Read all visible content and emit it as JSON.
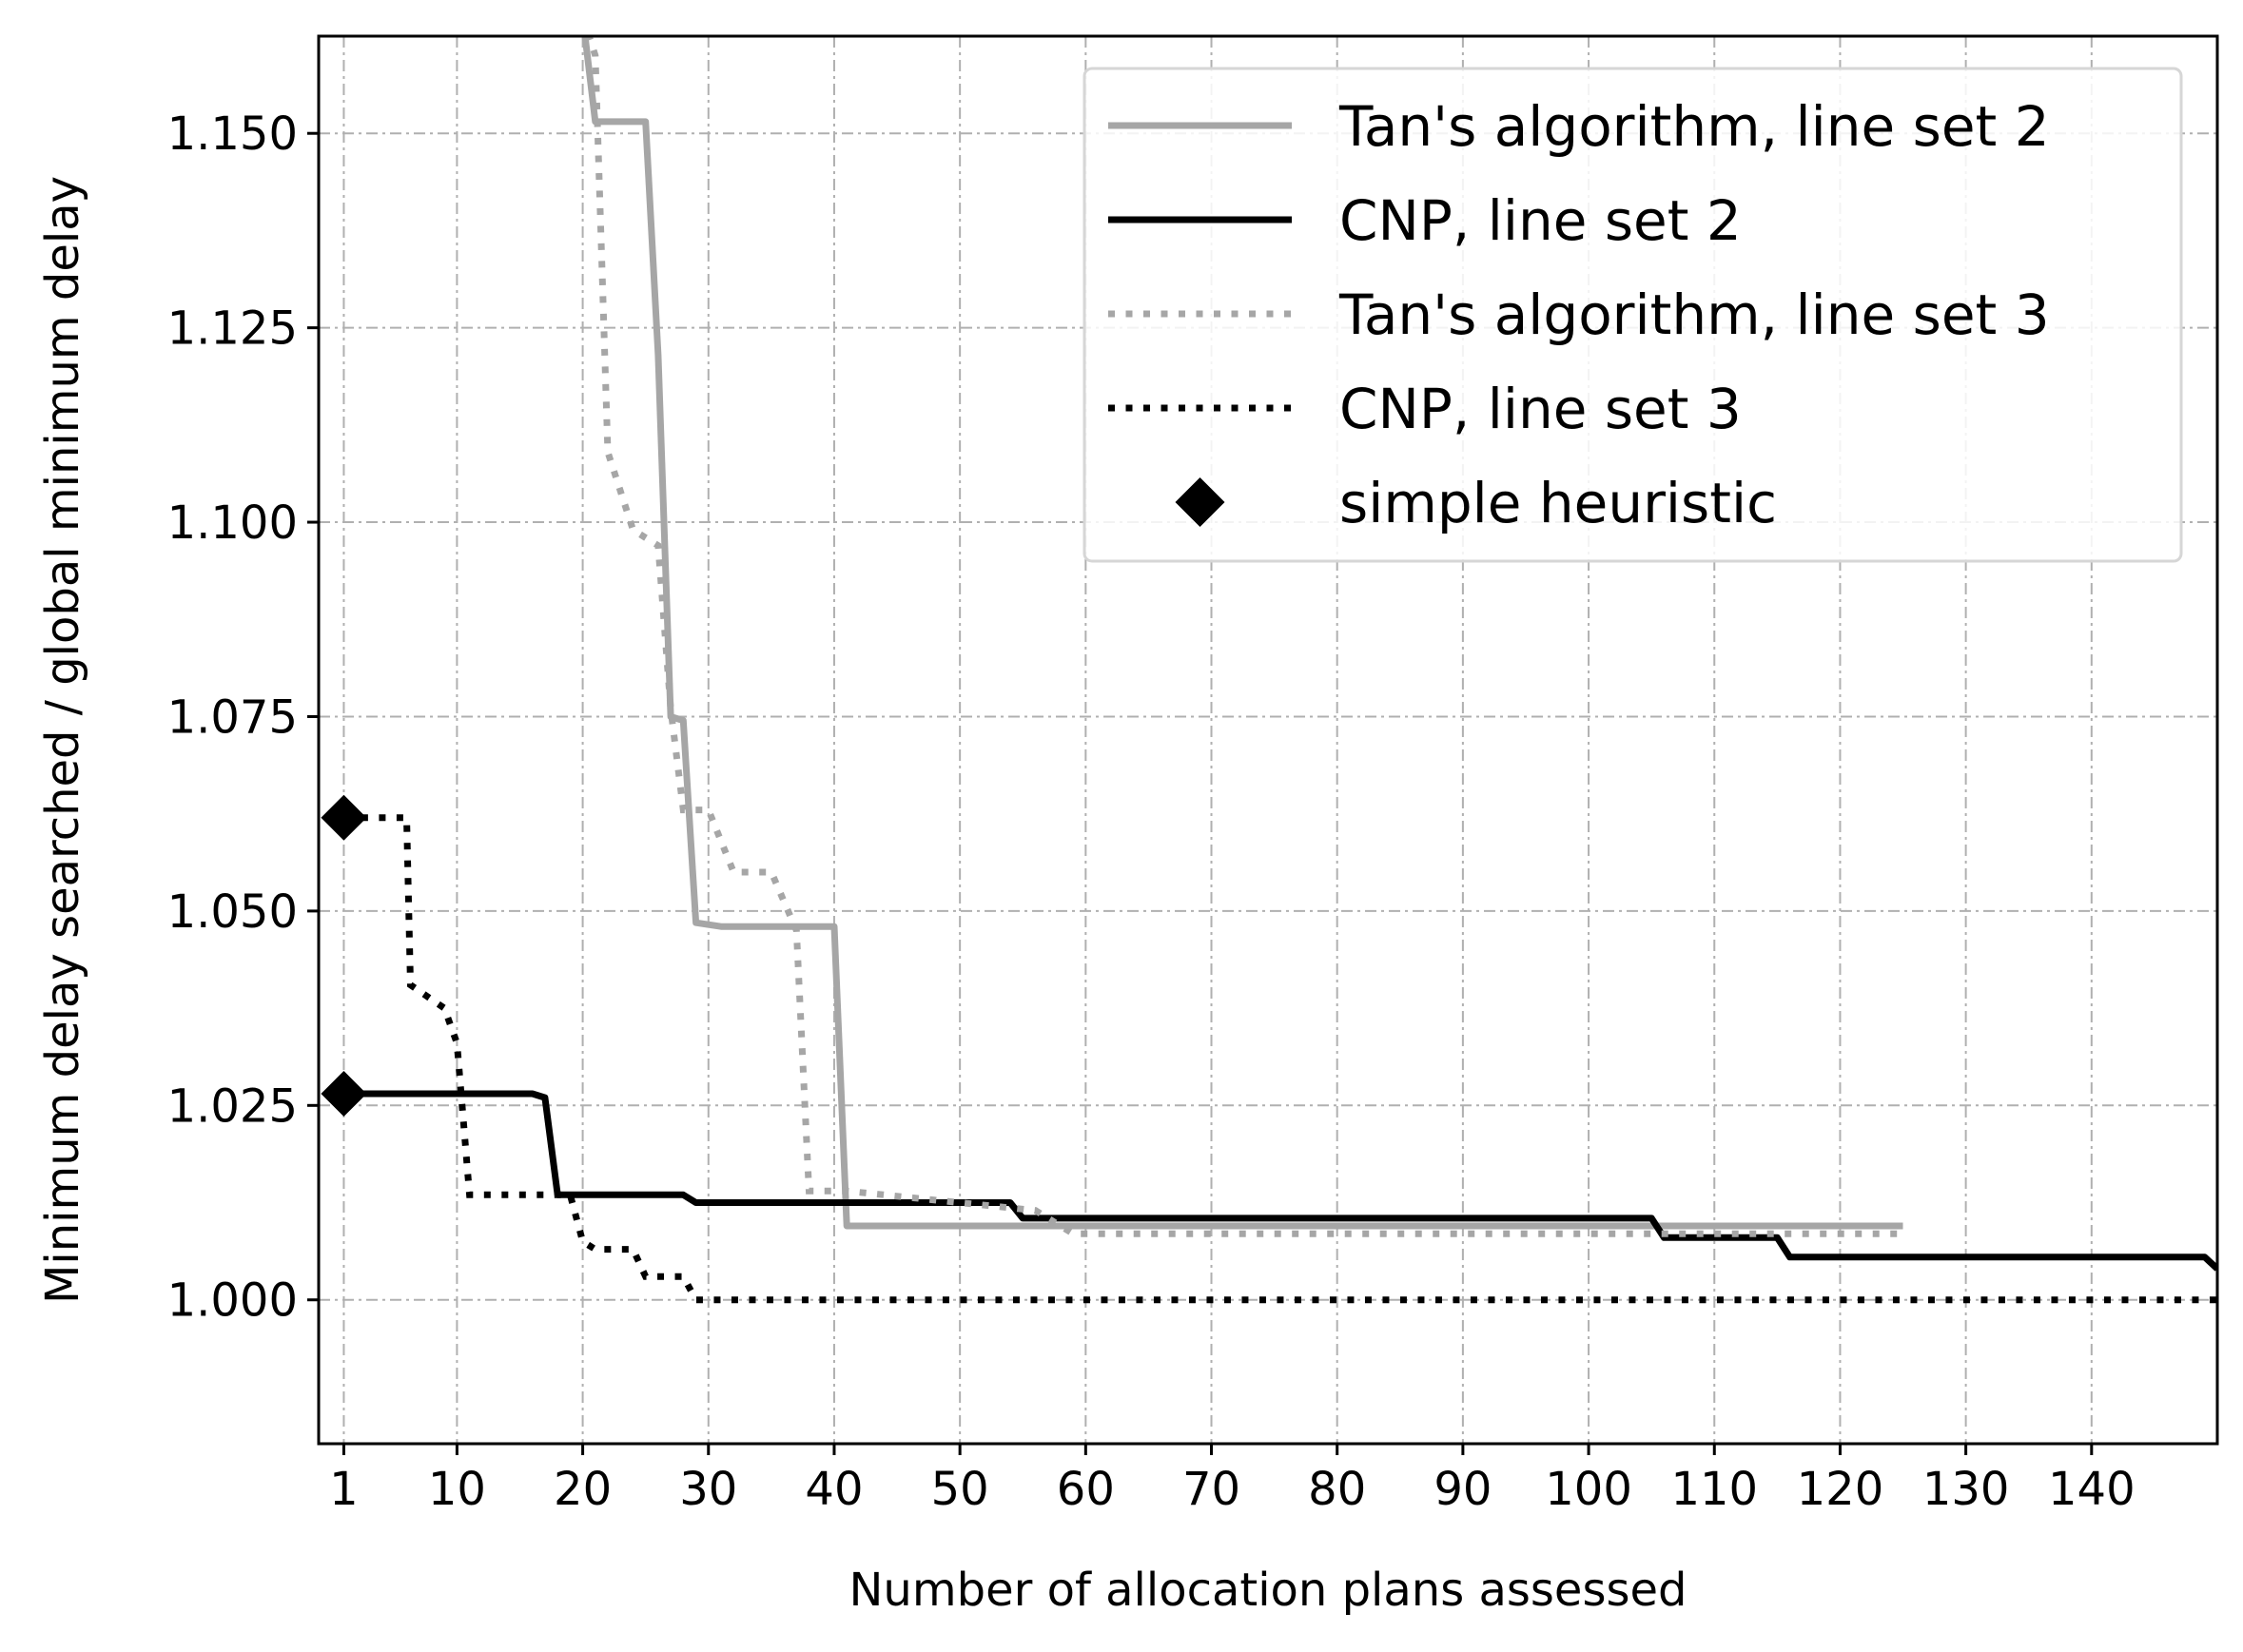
{
  "chart_data": {
    "type": "line",
    "xlabel": "Number of allocation plans assessed",
    "ylabel": "Minimum delay searched / global minimum delay",
    "xlim": [
      -1,
      150
    ],
    "ylim": [
      0.9815,
      1.1625
    ],
    "xticks": [
      1,
      10,
      20,
      30,
      40,
      50,
      60,
      70,
      80,
      90,
      100,
      110,
      120,
      130,
      140
    ],
    "xtick_labels": [
      "1",
      "10",
      "20",
      "30",
      "40",
      "50",
      "60",
      "70",
      "80",
      "90",
      "100",
      "110",
      "120",
      "130",
      "140"
    ],
    "yticks": [
      1.0,
      1.025,
      1.05,
      1.075,
      1.1,
      1.125,
      1.15
    ],
    "ytick_labels": [
      "1.000",
      "1.025",
      "1.050",
      "1.075",
      "1.100",
      "1.125",
      "1.150"
    ],
    "grid": true,
    "legend_position": "top-right",
    "series": [
      {
        "name": "Tan's algorithm, line set 2",
        "color": "#a6a6a6",
        "style": "solid",
        "points": [
          [
            20,
            1.165
          ],
          [
            21,
            1.1515
          ],
          [
            25,
            1.1515
          ],
          [
            26,
            1.1215
          ],
          [
            27,
            1.075
          ],
          [
            28,
            1.0745
          ],
          [
            29,
            1.0485
          ],
          [
            31,
            1.048
          ],
          [
            40,
            1.048
          ],
          [
            41,
            1.0095
          ],
          [
            125,
            1.0095
          ]
        ]
      },
      {
        "name": "CNP, line set 2",
        "color": "#000000",
        "style": "solid",
        "points": [
          [
            1,
            1.0265
          ],
          [
            16,
            1.0265
          ],
          [
            17,
            1.026
          ],
          [
            18,
            1.0135
          ],
          [
            28,
            1.0135
          ],
          [
            29,
            1.0125
          ],
          [
            54,
            1.0125
          ],
          [
            55,
            1.0105
          ],
          [
            105,
            1.0105
          ],
          [
            106,
            1.008
          ],
          [
            115,
            1.008
          ],
          [
            116,
            1.0055
          ],
          [
            149,
            1.0055
          ],
          [
            150,
            1.004
          ]
        ]
      },
      {
        "name": "Tan's algorithm, line set 3",
        "color": "#a6a6a6",
        "style": "dotted",
        "points": [
          [
            20,
            1.165
          ],
          [
            21,
            1.16
          ],
          [
            22,
            1.109
          ],
          [
            24,
            1.099
          ],
          [
            26,
            1.097
          ],
          [
            27,
            1.076
          ],
          [
            28,
            1.063
          ],
          [
            30,
            1.063
          ],
          [
            32,
            1.055
          ],
          [
            35,
            1.055
          ],
          [
            37,
            1.0475
          ],
          [
            38,
            1.014
          ],
          [
            41,
            1.014
          ],
          [
            56,
            1.0115
          ],
          [
            59,
            1.0085
          ],
          [
            125,
            1.0085
          ]
        ]
      },
      {
        "name": "CNP, line set 3",
        "color": "#000000",
        "style": "dotted",
        "points": [
          [
            1,
            1.062
          ],
          [
            6,
            1.062
          ],
          [
            6.3,
            1.0405
          ],
          [
            9,
            1.0375
          ],
          [
            10,
            1.033
          ],
          [
            11,
            1.0135
          ],
          [
            19,
            1.0135
          ],
          [
            20,
            1.0075
          ],
          [
            21,
            1.0065
          ],
          [
            24,
            1.0065
          ],
          [
            25,
            1.003
          ],
          [
            28,
            1.003
          ],
          [
            29,
            1.0
          ],
          [
            150,
            1.0
          ]
        ]
      },
      {
        "name": "simple heuristic",
        "color": "#000000",
        "style": "marker",
        "marker": "diamond",
        "points": [
          [
            1,
            1.062
          ],
          [
            1,
            1.0265
          ]
        ]
      }
    ]
  }
}
